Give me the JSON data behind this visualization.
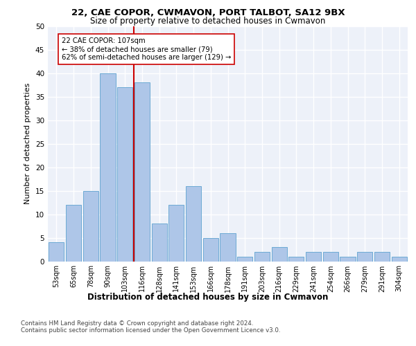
{
  "title1": "22, CAE COPOR, CWMAVON, PORT TALBOT, SA12 9BX",
  "title2": "Size of property relative to detached houses in Cwmavon",
  "xlabel": "Distribution of detached houses by size in Cwmavon",
  "ylabel": "Number of detached properties",
  "bar_labels": [
    "53sqm",
    "65sqm",
    "78sqm",
    "90sqm",
    "103sqm",
    "116sqm",
    "128sqm",
    "141sqm",
    "153sqm",
    "166sqm",
    "178sqm",
    "191sqm",
    "203sqm",
    "216sqm",
    "229sqm",
    "241sqm",
    "254sqm",
    "266sqm",
    "279sqm",
    "291sqm",
    "304sqm"
  ],
  "bar_heights": [
    4,
    12,
    15,
    40,
    37,
    38,
    8,
    12,
    16,
    5,
    6,
    1,
    2,
    3,
    1,
    2,
    2,
    1,
    2,
    2,
    1
  ],
  "bar_color": "#aec6e8",
  "bar_edge_color": "#6daad4",
  "vline_color": "#cc0000",
  "annotation_text": "22 CAE COPOR: 107sqm\n← 38% of detached houses are smaller (79)\n62% of semi-detached houses are larger (129) →",
  "annotation_box_color": "#ffffff",
  "annotation_box_edge": "#cc0000",
  "bg_color": "#edf1f9",
  "grid_color": "#ffffff",
  "ylim": [
    0,
    50
  ],
  "yticks": [
    0,
    5,
    10,
    15,
    20,
    25,
    30,
    35,
    40,
    45,
    50
  ],
  "footer1": "Contains HM Land Registry data © Crown copyright and database right 2024.",
  "footer2": "Contains public sector information licensed under the Open Government Licence v3.0."
}
